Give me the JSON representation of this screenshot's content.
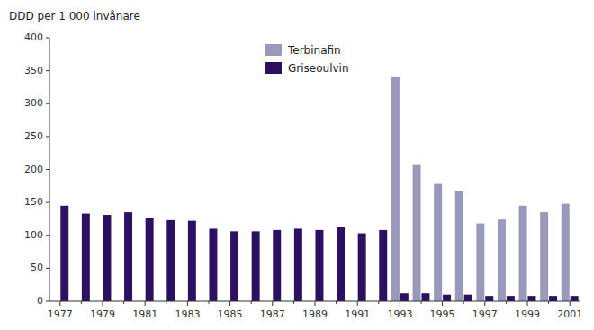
{
  "chart_data": {
    "type": "bar",
    "ylabel": "DDD per 1 000 invånare",
    "categories": [
      "1977",
      null,
      "1979",
      null,
      "1981",
      null,
      "1983",
      null,
      "1985",
      null,
      "1987",
      null,
      "1989",
      null,
      "1991",
      null,
      "1993",
      null,
      "1995",
      null,
      "1997",
      null,
      "1999",
      null,
      "2001"
    ],
    "series": [
      {
        "name": "Terbinafin",
        "color": "#9999bb",
        "values": [
          0,
          0,
          0,
          0,
          0,
          0,
          0,
          0,
          0,
          0,
          0,
          0,
          0,
          0,
          0,
          0,
          340,
          208,
          178,
          168,
          118,
          124,
          145,
          135,
          148
        ]
      },
      {
        "name": "Griseoulvin",
        "color": "#2d1060",
        "values": [
          145,
          133,
          131,
          135,
          127,
          123,
          122,
          110,
          106,
          106,
          108,
          110,
          108,
          112,
          103,
          108,
          12,
          12,
          10,
          10,
          8,
          8,
          8,
          8,
          8
        ]
      }
    ],
    "ylim": [
      0,
      400
    ],
    "yticks": [
      0,
      50,
      100,
      150,
      200,
      250,
      300,
      350,
      400
    ],
    "grid": false,
    "legend": "upper center"
  }
}
